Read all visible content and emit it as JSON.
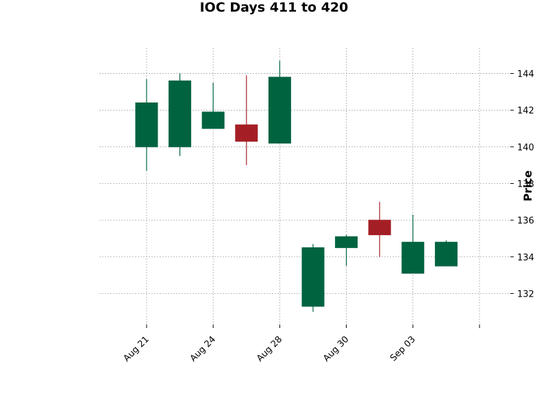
{
  "chart_data": {
    "type": "candlestick",
    "title": "IOC Days 411 to 420",
    "xlabel": "",
    "ylabel": "Price",
    "ylim": [
      130.3,
      145.4
    ],
    "yticks": [
      132,
      134,
      136,
      138,
      140,
      142,
      144
    ],
    "xticks": [
      {
        "index": 0,
        "label": "Aug 21"
      },
      {
        "index": 2,
        "label": "Aug 24"
      },
      {
        "index": 4,
        "label": "Aug 28"
      },
      {
        "index": 6,
        "label": "Aug 30"
      },
      {
        "index": 8,
        "label": "Sep 03"
      },
      {
        "index": 10,
        "label": ""
      }
    ],
    "grid": true,
    "colors": {
      "up": "#006340",
      "down": "#a41f25"
    },
    "candles": [
      {
        "open": 140.0,
        "high": 143.7,
        "low": 138.7,
        "close": 142.4
      },
      {
        "open": 140.0,
        "high": 144.0,
        "low": 139.5,
        "close": 143.6
      },
      {
        "open": 141.0,
        "high": 143.5,
        "low": 141.0,
        "close": 141.9
      },
      {
        "open": 141.2,
        "high": 143.9,
        "low": 139.0,
        "close": 140.3
      },
      {
        "open": 140.2,
        "high": 144.7,
        "low": 140.2,
        "close": 143.8
      },
      {
        "open": 131.3,
        "high": 134.7,
        "low": 131.0,
        "close": 134.5
      },
      {
        "open": 134.5,
        "high": 135.2,
        "low": 133.5,
        "close": 135.1
      },
      {
        "open": 136.0,
        "high": 137.0,
        "low": 134.0,
        "close": 135.2
      },
      {
        "open": 133.1,
        "high": 136.3,
        "low": 133.1,
        "close": 134.8
      },
      {
        "open": 133.5,
        "high": 134.9,
        "low": 133.5,
        "close": 134.8
      }
    ]
  }
}
